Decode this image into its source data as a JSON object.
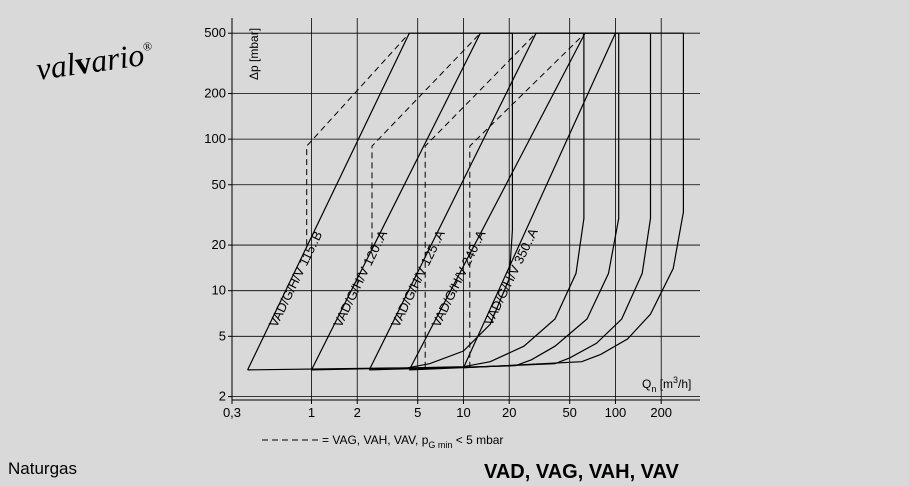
{
  "chart_data": {
    "type": "line",
    "logo_parts": [
      "val",
      "v",
      "ario",
      "®"
    ],
    "y_label": "Δp [mbar]",
    "x_label_parts": [
      "Q",
      "n",
      " [m",
      "3",
      "/h]"
    ],
    "xlim": [
      0.3,
      360
    ],
    "ylim": [
      1.9,
      630
    ],
    "log_x": true,
    "log_y": true,
    "grid": true,
    "xticks": [
      {
        "value": 0.3,
        "label": "0,3"
      },
      1,
      2,
      5,
      10,
      20,
      50,
      100,
      200
    ],
    "yticks": [
      2,
      5,
      10,
      20,
      50,
      100,
      200,
      500
    ],
    "series": [
      {
        "name": "VAD/G/H/V 115..B",
        "color": "#000000",
        "style": "solid",
        "x": [
          0.38,
          4.4,
          21,
          21,
          20,
          15,
          10,
          6,
          4.3,
          0.38
        ],
        "y": [
          3,
          500,
          500,
          25,
          12,
          6,
          4,
          3.3,
          3.1,
          3
        ]
      },
      {
        "name": "VAD/G/H/V 120..A",
        "color": "#000000",
        "style": "solid",
        "x": [
          1,
          12.9,
          62,
          62,
          55,
          40,
          25,
          15,
          10,
          1
        ],
        "y": [
          3,
          500,
          500,
          30,
          13,
          6.5,
          4.3,
          3.4,
          3.15,
          3
        ]
      },
      {
        "name": "VAD/G/H/V 125..A",
        "color": "#000000",
        "style": "solid",
        "x": [
          2.4,
          30,
          105,
          105,
          90,
          65,
          40,
          28,
          22,
          2.4
        ],
        "y": [
          3,
          500,
          500,
          30,
          13,
          6.5,
          4.3,
          3.5,
          3.2,
          3
        ]
      },
      {
        "name": "VAD/G/H/V 240..A",
        "color": "#000000",
        "style": "solid",
        "x": [
          4.4,
          63,
          170,
          170,
          150,
          110,
          75,
          50,
          40,
          4.4
        ],
        "y": [
          3,
          500,
          500,
          30,
          13,
          6.5,
          4.5,
          3.6,
          3.3,
          3
        ]
      },
      {
        "name": "VAD/G/H/V 350..A",
        "color": "#000000",
        "style": "solid",
        "x": [
          10,
          100,
          280,
          280,
          240,
          170,
          120,
          80,
          60,
          10
        ],
        "y": [
          3.1,
          500,
          500,
          33,
          14,
          7,
          4.8,
          3.8,
          3.4,
          3.1
        ]
      }
    ],
    "dashed_lines": [
      {
        "x": [
          0.93,
          0.93,
          4.4
        ],
        "y": [
          20,
          90,
          500
        ]
      },
      {
        "x": [
          2.5,
          2.5,
          12.9
        ],
        "y": [
          19,
          90,
          500
        ]
      },
      {
        "x": [
          5.6,
          5.6,
          30
        ],
        "y": [
          3.1,
          90,
          500
        ]
      },
      {
        "x": [
          11,
          11,
          63
        ],
        "y": [
          3.1,
          90,
          500
        ]
      }
    ],
    "legend_note_parts": [
      "= VAG, VAH, VAV, p",
      "G min",
      " < 5 mbar"
    ],
    "footer_left": "Naturgas",
    "footer_right": "VAD, VAG, VAH, VAV"
  }
}
